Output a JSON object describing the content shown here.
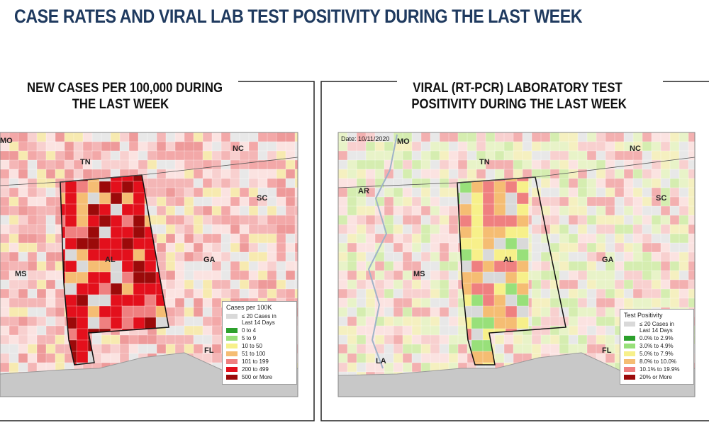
{
  "title": "CASE RATES AND VIRAL LAB TEST POSITIVITY DURING THE LAST WEEK",
  "panels": [
    {
      "title_lines": [
        "NEW CASES PER 100,000 DURING",
        "THE LAST WEEK"
      ],
      "state_labels": [
        "MO",
        "TN",
        "NC",
        "SC",
        "AL",
        "GA",
        "MS",
        "FL"
      ],
      "legend": {
        "title": "Cases per 100K",
        "items": [
          {
            "label": "≤ 20 Cases in Last 14 Days",
            "color": "#d9d9d9"
          },
          {
            "label": "0 to 4",
            "color": "#2ca02c"
          },
          {
            "label": "5 to 9",
            "color": "#98e07a"
          },
          {
            "label": "10 to 50",
            "color": "#f7f08a"
          },
          {
            "label": "51 to 100",
            "color": "#f5bd73"
          },
          {
            "label": "101 to 199",
            "color": "#ef8080"
          },
          {
            "label": "200 to 499",
            "color": "#e3101c"
          },
          {
            "label": "500 or More",
            "color": "#9b0a0a"
          }
        ]
      }
    },
    {
      "title_lines": [
        "VIRAL (RT-PCR) LABORATORY TEST",
        "POSITIVITY DURING THE LAST WEEK"
      ],
      "date": "Date: 10/11/2020",
      "state_labels": [
        "MO",
        "TN",
        "NC",
        "AR",
        "SC",
        "AL",
        "GA",
        "MS",
        "LA",
        "FL"
      ],
      "legend": {
        "title": "Test Positivity",
        "items": [
          {
            "label": "≤ 20 Cases in Last 14 Days",
            "color": "#d9d9d9"
          },
          {
            "label": "0.0% to 2.9%",
            "color": "#2ca02c"
          },
          {
            "label": "3.0% to 4.9%",
            "color": "#98e07a"
          },
          {
            "label": "5.0% to 7.9%",
            "color": "#f7f08a"
          },
          {
            "label": "8.0% to 10.0%",
            "color": "#f5bd73"
          },
          {
            "label": "10.1% to 19.9%",
            "color": "#ef8080"
          },
          {
            "label": "20% or More",
            "color": "#9b0a0a"
          }
        ]
      }
    }
  ]
}
